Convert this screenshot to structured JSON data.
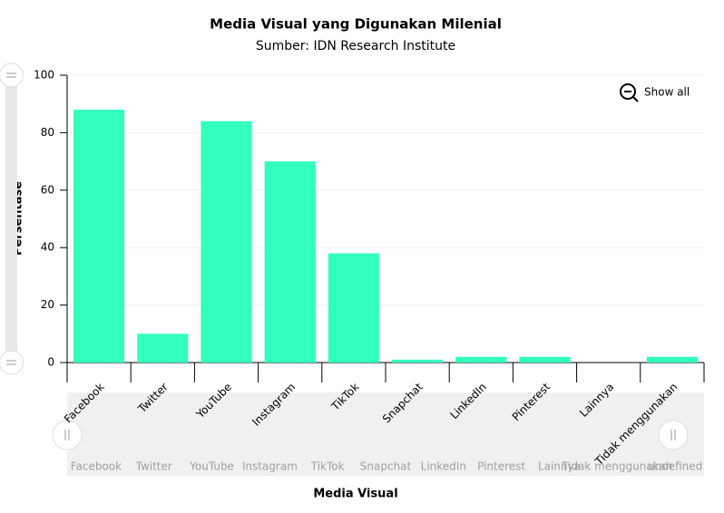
{
  "chart_data": {
    "type": "bar",
    "title": "Media Visual yang Digunakan Milenial",
    "subtitle": "Sumber: IDN Research Institute",
    "x_label": "Media Visual",
    "y_label": "Persentase",
    "categories": [
      "Facebook",
      "Twitter",
      "YouTube",
      "Instagram",
      "TikTok",
      "Snapchat",
      "LinkedIn",
      "Pinterest",
      "Lainnya",
      "Tidak menggunakan"
    ],
    "values": [
      88,
      10,
      84,
      70,
      38,
      1,
      2,
      2,
      0,
      2
    ],
    "color": "#33ffbf",
    "ylim": [
      0,
      100
    ],
    "yticks": [
      0,
      20,
      40,
      60,
      80,
      100
    ],
    "grid": true,
    "zoom_button": "Show all",
    "scrollbar_extra_label": "undefined"
  }
}
